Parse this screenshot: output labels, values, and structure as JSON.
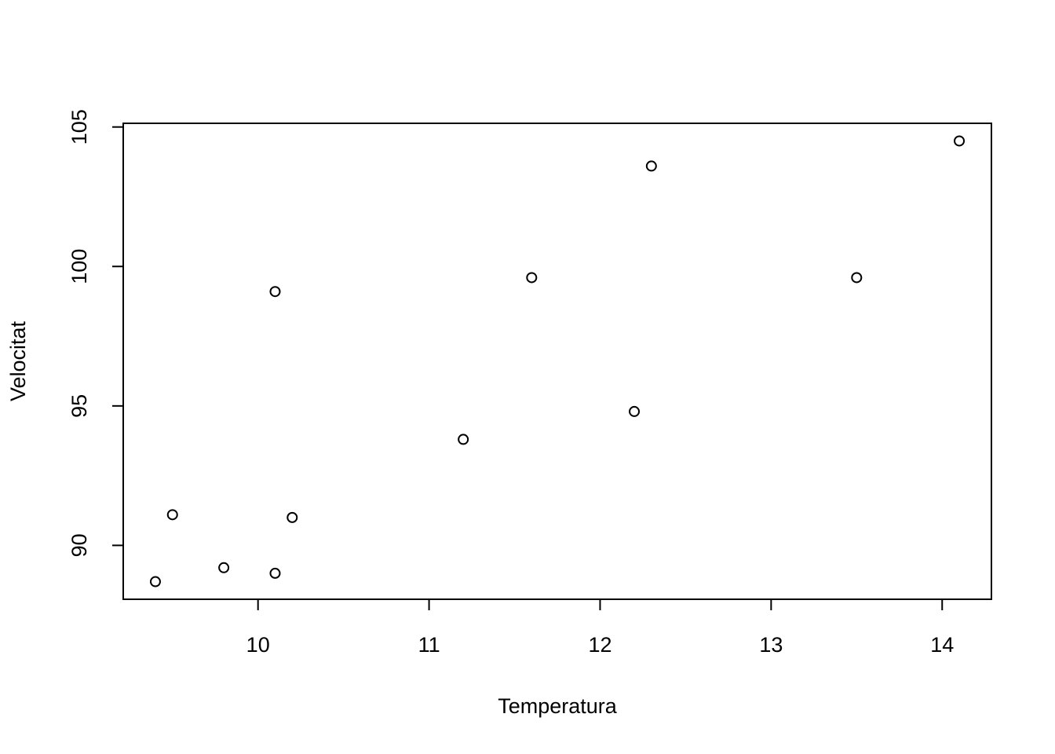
{
  "chart_data": {
    "type": "scatter",
    "xlabel": "Temperatura",
    "ylabel": "Velocitat",
    "x": [
      9.4,
      9.5,
      9.8,
      10.1,
      10.1,
      10.2,
      11.2,
      11.6,
      12.2,
      12.3,
      13.5,
      14.1
    ],
    "values": [
      88.7,
      91.1,
      89.2,
      89.0,
      99.1,
      91.0,
      93.8,
      99.6,
      94.8,
      103.6,
      99.6,
      104.5
    ],
    "color": "#000000",
    "xlim": [
      9.212,
      14.288
    ],
    "ylim": [
      88.068,
      105.132
    ],
    "xticks": [
      10,
      11,
      12,
      13,
      14
    ],
    "yticks": [
      90,
      95,
      100,
      105
    ]
  }
}
